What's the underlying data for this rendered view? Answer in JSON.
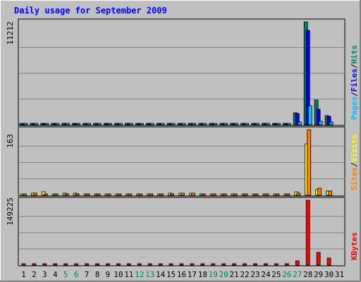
{
  "chart_data": [
    {
      "type": "bar",
      "title": "Daily usage for September 2009",
      "ymax_label": "11212",
      "ylim": [
        0,
        11212
      ],
      "grid": true,
      "legend": [
        "Pages",
        "Files",
        "Hits"
      ],
      "categories": [
        "1",
        "2",
        "3",
        "4",
        "5",
        "6",
        "7",
        "8",
        "9",
        "10",
        "11",
        "12",
        "13",
        "14",
        "15",
        "16",
        "17",
        "18",
        "19",
        "20",
        "21",
        "22",
        "23",
        "24",
        "25",
        "26",
        "27",
        "28",
        "29",
        "30",
        "31"
      ],
      "weekend_days": [
        "5",
        "6",
        "12",
        "13",
        "19",
        "20",
        "26",
        "27"
      ],
      "series": [
        {
          "name": "Hits",
          "color": "#00805c",
          "values": [
            130,
            110,
            60,
            110,
            40,
            40,
            40,
            40,
            40,
            40,
            40,
            120,
            100,
            40,
            40,
            40,
            40,
            40,
            40,
            40,
            40,
            120,
            40,
            40,
            120,
            40,
            1300,
            11212,
            2700,
            1000,
            0
          ]
        },
        {
          "name": "Files",
          "color": "#0000ff",
          "values": [
            100,
            90,
            50,
            90,
            30,
            30,
            30,
            30,
            30,
            30,
            30,
            100,
            80,
            30,
            30,
            30,
            30,
            30,
            30,
            30,
            30,
            100,
            30,
            30,
            100,
            30,
            1200,
            10300,
            1700,
            900,
            0
          ]
        },
        {
          "name": "Pages",
          "color": "#00c0ff",
          "values": [
            60,
            50,
            30,
            50,
            20,
            20,
            20,
            20,
            20,
            20,
            20,
            60,
            50,
            20,
            20,
            20,
            20,
            20,
            20,
            20,
            20,
            60,
            20,
            20,
            60,
            20,
            300,
            2100,
            400,
            300,
            0
          ]
        }
      ]
    },
    {
      "type": "bar",
      "ymax_label": "163",
      "ylim": [
        0,
        163
      ],
      "grid": true,
      "legend": [
        "Sites",
        "Visits"
      ],
      "categories": [
        "1",
        "2",
        "3",
        "4",
        "5",
        "6",
        "7",
        "8",
        "9",
        "10",
        "11",
        "12",
        "13",
        "14",
        "15",
        "16",
        "17",
        "18",
        "19",
        "20",
        "21",
        "22",
        "23",
        "24",
        "25",
        "26",
        "27",
        "28",
        "29",
        "30",
        "31"
      ],
      "series": [
        {
          "name": "Visits",
          "color": "#ffff00",
          "values": [
            3,
            5,
            9,
            4,
            5,
            5,
            4,
            3,
            3,
            2,
            3,
            2,
            3,
            4,
            5,
            6,
            6,
            3,
            3,
            4,
            4,
            4,
            4,
            4,
            3,
            4,
            8,
            128,
            14,
            11,
            0
          ]
        },
        {
          "name": "Sites",
          "color": "#ff8000",
          "values": [
            3,
            5,
            4,
            4,
            4,
            4,
            3,
            3,
            3,
            2,
            3,
            2,
            3,
            4,
            4,
            5,
            5,
            3,
            3,
            4,
            4,
            4,
            4,
            3,
            3,
            4,
            5,
            163,
            18,
            11,
            0
          ]
        }
      ]
    },
    {
      "type": "bar",
      "ymax_label": "149225",
      "ylim": [
        0,
        149225
      ],
      "grid": true,
      "legend": [
        "KBytes"
      ],
      "categories": [
        "1",
        "2",
        "3",
        "4",
        "5",
        "6",
        "7",
        "8",
        "9",
        "10",
        "11",
        "12",
        "13",
        "14",
        "15",
        "16",
        "17",
        "18",
        "19",
        "20",
        "21",
        "22",
        "23",
        "24",
        "25",
        "26",
        "27",
        "28",
        "29",
        "30",
        "31"
      ],
      "series": [
        {
          "name": "KBytes",
          "color": "#ff0000",
          "values": [
            2500,
            2500,
            2500,
            2500,
            2500,
            2500,
            2500,
            2500,
            2500,
            2500,
            2500,
            2500,
            2500,
            2500,
            2500,
            2500,
            2500,
            2500,
            2500,
            2500,
            2500,
            2500,
            2500,
            2500,
            2500,
            2500,
            10000,
            149225,
            30000,
            16000,
            0
          ]
        }
      ]
    }
  ]
}
